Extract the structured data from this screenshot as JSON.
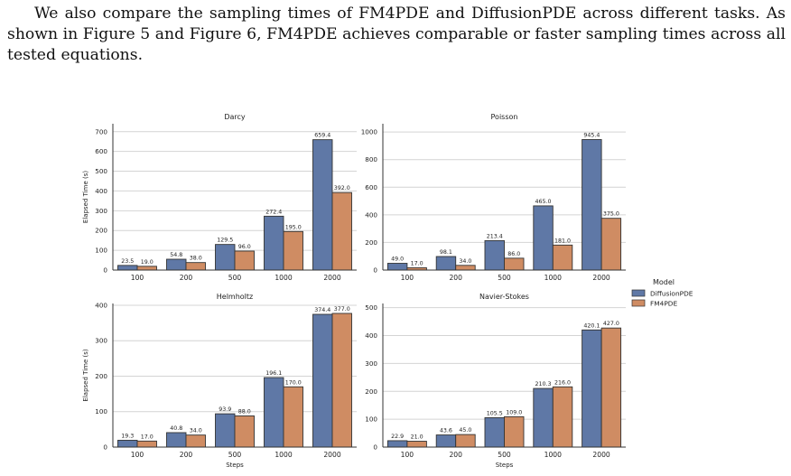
{
  "paragraph": "We also compare the sampling times of FM4PDE and DiffusionPDE across different tasks. As shown in Figure 5 and Figure 6, FM4PDE achieves comparable or faster sampling times across all tested equations.",
  "colors": {
    "DiffusionPDE": "#5f78a6",
    "FM4PDE": "#cf8c63",
    "grid": "#d4d4d4",
    "axis": "#333333"
  },
  "legend": {
    "title": "Model",
    "position": "right",
    "entries": [
      "DiffusionPDE",
      "FM4PDE"
    ]
  },
  "chart_data": [
    {
      "type": "bar",
      "title": "Darcy",
      "ylabel": "Elapsed Time (s)",
      "xlabel": "",
      "categories": [
        "100",
        "200",
        "500",
        "1000",
        "2000"
      ],
      "ylim": [
        0,
        740
      ],
      "yticks": [
        0,
        100,
        200,
        300,
        400,
        500,
        600,
        700
      ],
      "grid": true,
      "series": [
        {
          "name": "DiffusionPDE",
          "values": [
            23.5,
            54.8,
            129.5,
            272.4,
            659.4
          ]
        },
        {
          "name": "FM4PDE",
          "values": [
            19.0,
            38.0,
            96.0,
            195.0,
            392.0
          ]
        }
      ]
    },
    {
      "type": "bar",
      "title": "Poisson",
      "ylabel": "",
      "xlabel": "",
      "categories": [
        "100",
        "200",
        "500",
        "1000",
        "2000"
      ],
      "ylim": [
        0,
        1060
      ],
      "yticks": [
        0,
        200,
        400,
        600,
        800,
        1000
      ],
      "grid": true,
      "series": [
        {
          "name": "DiffusionPDE",
          "values": [
            49.0,
            98.1,
            213.4,
            465.0,
            945.4
          ]
        },
        {
          "name": "FM4PDE",
          "values": [
            17.0,
            34.0,
            86.0,
            181.0,
            375.0
          ]
        }
      ]
    },
    {
      "type": "bar",
      "title": "Helmholtz",
      "ylabel": "Elapsed Time (s)",
      "xlabel": "Steps",
      "categories": [
        "100",
        "200",
        "500",
        "1000",
        "2000"
      ],
      "ylim": [
        0,
        405
      ],
      "yticks": [
        0,
        100,
        200,
        300,
        400
      ],
      "grid": true,
      "series": [
        {
          "name": "DiffusionPDE",
          "values": [
            19.3,
            40.8,
            93.9,
            196.1,
            374.4
          ]
        },
        {
          "name": "FM4PDE",
          "values": [
            17.0,
            34.0,
            88.0,
            170.0,
            377.0
          ]
        }
      ]
    },
    {
      "type": "bar",
      "title": "Navier-Stokes",
      "ylabel": "",
      "xlabel": "Steps",
      "categories": [
        "100",
        "200",
        "500",
        "1000",
        "2000"
      ],
      "ylim": [
        0,
        515
      ],
      "yticks": [
        0,
        100,
        200,
        300,
        400,
        500
      ],
      "grid": true,
      "series": [
        {
          "name": "DiffusionPDE",
          "values": [
            22.9,
            43.6,
            105.5,
            210.3,
            420.1
          ]
        },
        {
          "name": "FM4PDE",
          "values": [
            21.0,
            45.0,
            109.0,
            216.0,
            427.0
          ]
        }
      ]
    }
  ]
}
